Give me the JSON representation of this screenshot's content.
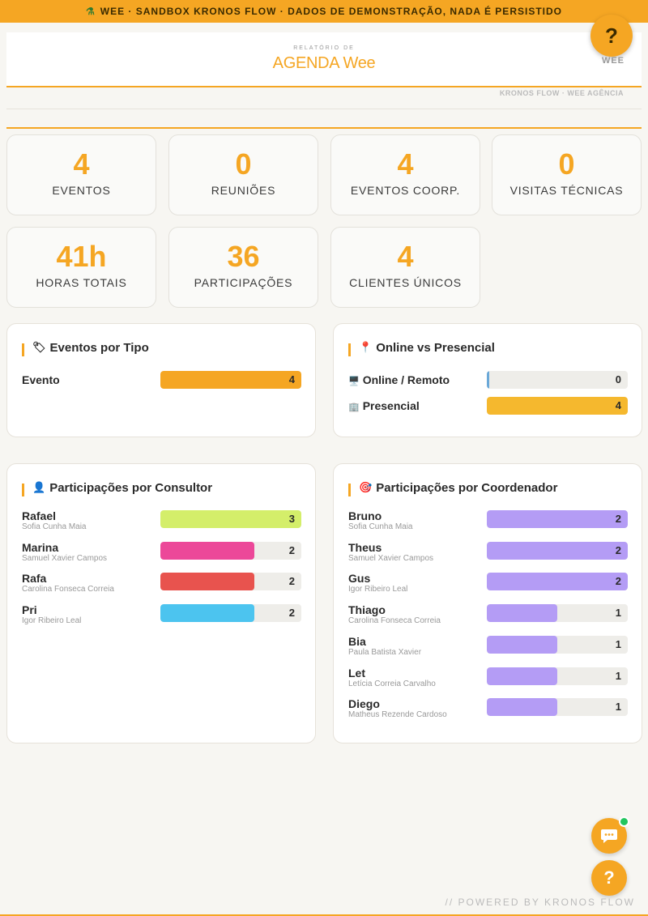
{
  "banner": {
    "icon": "flask-icon",
    "text": "WEE · SANDBOX KRONOS FLOW · DADOS DE DEMONSTRAÇÃO, NADA É PERSISTIDO"
  },
  "help": {
    "symbol": "?",
    "label": "WEE"
  },
  "header": {
    "subtitle": "RELATÓRIO DE",
    "title": "AGENDA Wee"
  },
  "meta": {
    "source": "KRONOS FLOW · WEE AGÊNCIA"
  },
  "stats": [
    {
      "value": "4",
      "label": "EVENTOS"
    },
    {
      "value": "0",
      "label": "REUNIÕES"
    },
    {
      "value": "4",
      "label": "EVENTOS COORP."
    },
    {
      "value": "0",
      "label": "VISITAS TÉCNICAS"
    },
    {
      "value": "41h",
      "label": "HORAS TOTAIS"
    },
    {
      "value": "36",
      "label": "PARTICIPAÇÕES"
    },
    {
      "value": "4",
      "label": "CLIENTES ÚNICOS"
    }
  ],
  "panels": {
    "tipo": {
      "title": "Eventos por Tipo",
      "icon": "tag-icon",
      "max": 4,
      "rows": [
        {
          "name": "Evento",
          "value": 4,
          "color": "#f5a623"
        }
      ]
    },
    "modo": {
      "title": "Online vs Presencial",
      "icon": "pin-icon",
      "max": 4,
      "rows": [
        {
          "name": "Online / Remoto",
          "icon": "monitor-icon",
          "value": 0,
          "color": "#6aa8d8"
        },
        {
          "name": "Presencial",
          "icon": "building-icon",
          "value": 4,
          "color": "#f5b82e"
        }
      ]
    },
    "consultor": {
      "title": "Participações por Consultor",
      "icon": "person-icon",
      "max": 3,
      "rows": [
        {
          "name": "Rafael",
          "sub": "Sofia Cunha Maia",
          "value": 3,
          "color": "#d4ee6a"
        },
        {
          "name": "Marina",
          "sub": "Samuel Xavier Campos",
          "value": 2,
          "color": "#ec4899"
        },
        {
          "name": "Rafa",
          "sub": "Carolina Fonseca Correia",
          "value": 2,
          "color": "#e8534e"
        },
        {
          "name": "Pri",
          "sub": "Igor Ribeiro Leal",
          "value": 2,
          "color": "#4cc4ef"
        }
      ]
    },
    "coordenador": {
      "title": "Participações por Coordenador",
      "icon": "target-icon",
      "max": 2,
      "rows": [
        {
          "name": "Bruno",
          "sub": "Sofia Cunha Maia",
          "value": 2,
          "color": "#b49cf5"
        },
        {
          "name": "Theus",
          "sub": "Samuel Xavier Campos",
          "value": 2,
          "color": "#b49cf5"
        },
        {
          "name": "Gus",
          "sub": "Igor Ribeiro Leal",
          "value": 2,
          "color": "#b49cf5"
        },
        {
          "name": "Thiago",
          "sub": "Carolina Fonseca Correia",
          "value": 1,
          "color": "#b49cf5"
        },
        {
          "name": "Bia",
          "sub": "Paula Batista Xavier",
          "value": 1,
          "color": "#b49cf5"
        },
        {
          "name": "Let",
          "sub": "Letícia Correia Carvalho",
          "value": 1,
          "color": "#b49cf5"
        },
        {
          "name": "Diego",
          "sub": "Matheus Rezende Cardoso",
          "value": 1,
          "color": "#b49cf5"
        }
      ]
    }
  },
  "fabs": {
    "chat_icon": "chat-icon",
    "help_icon": "help-icon",
    "help_symbol": "?"
  },
  "footer": {
    "powered": "// POWERED BY KRONOS FLOW"
  }
}
